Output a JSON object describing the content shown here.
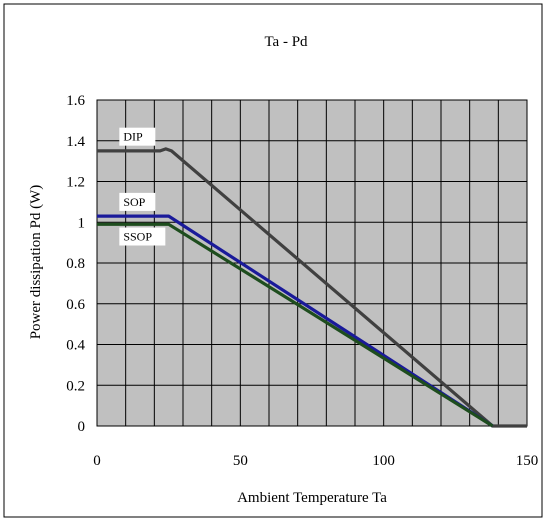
{
  "chart_data": {
    "type": "line",
    "title": "Ta - Pd",
    "xlabel": "Ambient Temperature  Ta",
    "ylabel": "Power dissipation Pd (W)",
    "xlim": [
      0,
      150
    ],
    "ylim": [
      0,
      1.6
    ],
    "x_ticks": [
      "0",
      "50",
      "100",
      "150"
    ],
    "y_ticks": [
      "0",
      "0.2",
      "0.4",
      "0.6",
      "0.8",
      "1",
      "1.2",
      "1.4",
      "1.6"
    ],
    "grid": true,
    "plot_background": "#c0c0c0",
    "series": [
      {
        "name": "DIP",
        "color": "#404040",
        "x": [
          0,
          22,
          24,
          26,
          138,
          150
        ],
        "y": [
          1.35,
          1.35,
          1.36,
          1.35,
          0,
          0
        ]
      },
      {
        "name": "SOP",
        "color": "#1a1a9a",
        "x": [
          0,
          25,
          138
        ],
        "y": [
          1.03,
          1.03,
          0
        ]
      },
      {
        "name": "SSOP",
        "color": "#1e4d1e",
        "x": [
          0,
          25,
          138
        ],
        "y": [
          0.99,
          0.99,
          0
        ]
      }
    ]
  }
}
